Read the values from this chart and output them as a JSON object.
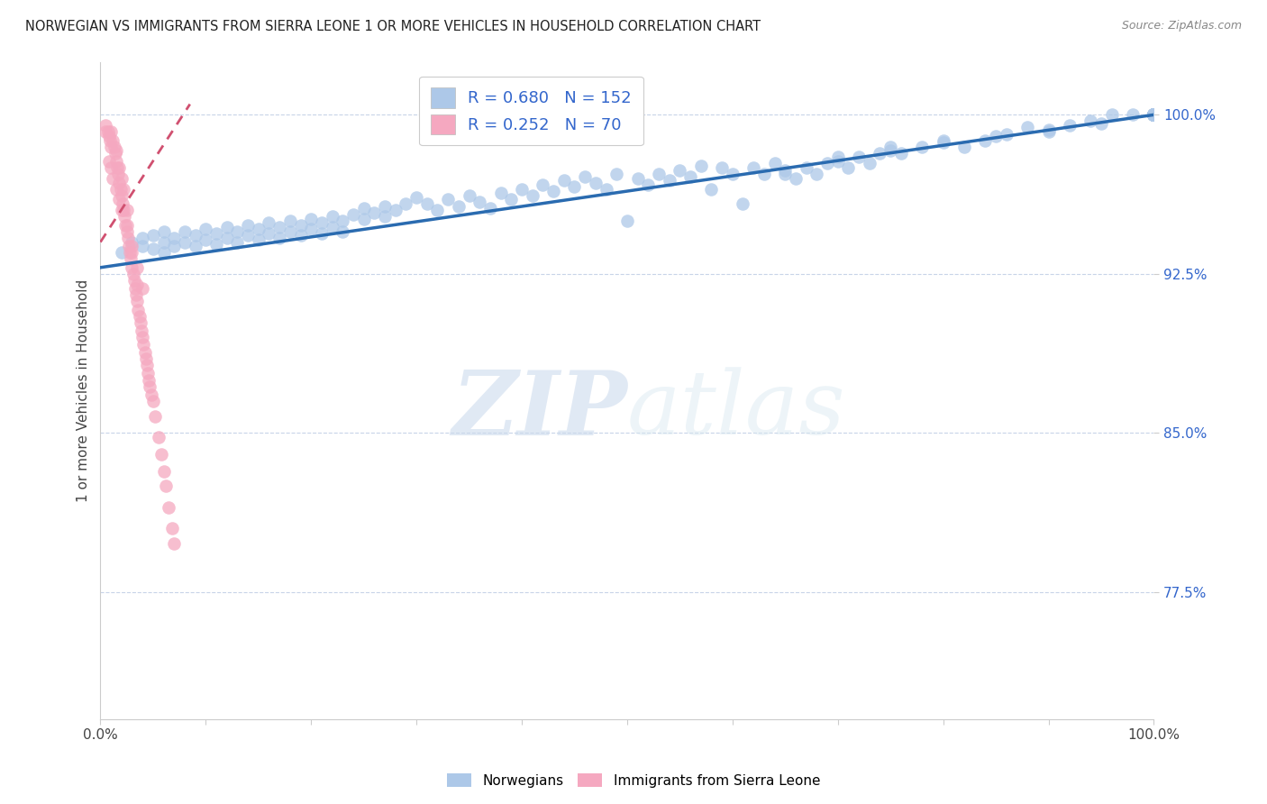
{
  "title": "NORWEGIAN VS IMMIGRANTS FROM SIERRA LEONE 1 OR MORE VEHICLES IN HOUSEHOLD CORRELATION CHART",
  "source": "Source: ZipAtlas.com",
  "ylabel": "1 or more Vehicles in Household",
  "xlim": [
    0.0,
    1.0
  ],
  "ylim": [
    0.715,
    1.025
  ],
  "yticks": [
    0.775,
    0.85,
    0.925,
    1.0
  ],
  "ytick_labels": [
    "77.5%",
    "85.0%",
    "92.5%",
    "100.0%"
  ],
  "watermark_zip": "ZIP",
  "watermark_atlas": "atlas",
  "legend_blue_r": "R = 0.680",
  "legend_blue_n": "N = 152",
  "legend_pink_r": "R = 0.252",
  "legend_pink_n": "N = 70",
  "blue_color": "#adc8e8",
  "blue_line_color": "#2a6bb0",
  "pink_color": "#f5a8c0",
  "pink_line_color": "#d05070",
  "background_color": "#ffffff",
  "grid_color": "#c8d4e8",
  "title_color": "#222222",
  "axis_label_color": "#444444",
  "tick_color_right": "#3366cc",
  "tick_color_bottom": "#444444",
  "blue_scatter": {
    "x": [
      0.02,
      0.03,
      0.04,
      0.04,
      0.05,
      0.05,
      0.06,
      0.06,
      0.06,
      0.07,
      0.07,
      0.08,
      0.08,
      0.09,
      0.09,
      0.1,
      0.1,
      0.11,
      0.11,
      0.12,
      0.12,
      0.13,
      0.13,
      0.14,
      0.14,
      0.15,
      0.15,
      0.16,
      0.16,
      0.17,
      0.17,
      0.18,
      0.18,
      0.19,
      0.19,
      0.2,
      0.2,
      0.21,
      0.21,
      0.22,
      0.22,
      0.23,
      0.23,
      0.24,
      0.25,
      0.25,
      0.26,
      0.27,
      0.27,
      0.28,
      0.29,
      0.3,
      0.31,
      0.32,
      0.33,
      0.34,
      0.35,
      0.36,
      0.37,
      0.38,
      0.39,
      0.4,
      0.41,
      0.42,
      0.43,
      0.44,
      0.45,
      0.46,
      0.47,
      0.48,
      0.49,
      0.5,
      0.51,
      0.52,
      0.53,
      0.54,
      0.55,
      0.56,
      0.57,
      0.58,
      0.59,
      0.6,
      0.61,
      0.62,
      0.63,
      0.64,
      0.65,
      0.66,
      0.67,
      0.68,
      0.69,
      0.7,
      0.71,
      0.72,
      0.73,
      0.74,
      0.75,
      0.76,
      0.78,
      0.8,
      0.82,
      0.84,
      0.86,
      0.88,
      0.9,
      0.92,
      0.94,
      0.96,
      0.98,
      1.0,
      0.65,
      0.7,
      0.75,
      0.8,
      0.85,
      0.9,
      0.95,
      1.0,
      1.0,
      1.0,
      1.0,
      1.0,
      1.0,
      1.0,
      1.0,
      1.0,
      1.0,
      1.0,
      1.0,
      1.0,
      1.0,
      1.0,
      1.0,
      1.0,
      1.0,
      1.0,
      1.0,
      1.0,
      1.0,
      1.0,
      1.0,
      1.0,
      1.0,
      1.0,
      1.0,
      1.0,
      1.0,
      1.0,
      1.0,
      1.0,
      1.0,
      1.0
    ],
    "y": [
      0.935,
      0.94,
      0.942,
      0.938,
      0.943,
      0.937,
      0.945,
      0.94,
      0.935,
      0.942,
      0.938,
      0.945,
      0.94,
      0.943,
      0.938,
      0.946,
      0.941,
      0.944,
      0.939,
      0.947,
      0.942,
      0.945,
      0.94,
      0.948,
      0.943,
      0.946,
      0.941,
      0.949,
      0.944,
      0.947,
      0.942,
      0.95,
      0.945,
      0.948,
      0.943,
      0.951,
      0.946,
      0.949,
      0.944,
      0.952,
      0.947,
      0.95,
      0.945,
      0.953,
      0.956,
      0.951,
      0.954,
      0.957,
      0.952,
      0.955,
      0.958,
      0.961,
      0.958,
      0.955,
      0.96,
      0.957,
      0.962,
      0.959,
      0.956,
      0.963,
      0.96,
      0.965,
      0.962,
      0.967,
      0.964,
      0.969,
      0.966,
      0.971,
      0.968,
      0.965,
      0.972,
      0.95,
      0.97,
      0.967,
      0.972,
      0.969,
      0.974,
      0.971,
      0.976,
      0.965,
      0.975,
      0.972,
      0.958,
      0.975,
      0.972,
      0.977,
      0.974,
      0.97,
      0.975,
      0.972,
      0.977,
      0.98,
      0.975,
      0.98,
      0.977,
      0.982,
      0.985,
      0.982,
      0.985,
      0.988,
      0.985,
      0.988,
      0.991,
      0.994,
      0.992,
      0.995,
      0.997,
      1.0,
      1.0,
      1.0,
      0.972,
      0.978,
      0.983,
      0.987,
      0.99,
      0.993,
      0.996,
      1.0,
      1.0,
      1.0,
      1.0,
      1.0,
      1.0,
      1.0,
      1.0,
      1.0,
      1.0,
      1.0,
      1.0,
      1.0,
      1.0,
      1.0,
      1.0,
      1.0,
      1.0,
      1.0,
      1.0,
      1.0,
      1.0,
      1.0,
      1.0,
      1.0,
      1.0,
      1.0,
      1.0,
      1.0,
      1.0,
      1.0,
      1.0,
      1.0,
      1.0,
      1.0
    ]
  },
  "pink_scatter": {
    "x": [
      0.005,
      0.007,
      0.008,
      0.009,
      0.01,
      0.01,
      0.012,
      0.013,
      0.014,
      0.015,
      0.015,
      0.016,
      0.017,
      0.018,
      0.018,
      0.019,
      0.02,
      0.02,
      0.021,
      0.022,
      0.022,
      0.023,
      0.024,
      0.025,
      0.025,
      0.026,
      0.027,
      0.028,
      0.029,
      0.03,
      0.03,
      0.031,
      0.032,
      0.033,
      0.034,
      0.035,
      0.035,
      0.036,
      0.037,
      0.038,
      0.039,
      0.04,
      0.041,
      0.042,
      0.043,
      0.044,
      0.045,
      0.046,
      0.047,
      0.048,
      0.05,
      0.052,
      0.055,
      0.058,
      0.06,
      0.062,
      0.065,
      0.068,
      0.07,
      0.005,
      0.008,
      0.01,
      0.012,
      0.015,
      0.018,
      0.02,
      0.025,
      0.03,
      0.035,
      0.04
    ],
    "y": [
      0.995,
      0.992,
      0.99,
      0.988,
      0.985,
      0.992,
      0.988,
      0.985,
      0.982,
      0.978,
      0.983,
      0.975,
      0.972,
      0.968,
      0.975,
      0.965,
      0.962,
      0.97,
      0.958,
      0.955,
      0.965,
      0.952,
      0.948,
      0.945,
      0.955,
      0.942,
      0.938,
      0.935,
      0.932,
      0.928,
      0.935,
      0.925,
      0.922,
      0.918,
      0.915,
      0.912,
      0.92,
      0.908,
      0.905,
      0.902,
      0.898,
      0.895,
      0.892,
      0.888,
      0.885,
      0.882,
      0.878,
      0.875,
      0.872,
      0.868,
      0.865,
      0.858,
      0.848,
      0.84,
      0.832,
      0.825,
      0.815,
      0.805,
      0.798,
      0.992,
      0.978,
      0.975,
      0.97,
      0.965,
      0.96,
      0.955,
      0.948,
      0.938,
      0.928,
      0.918
    ]
  },
  "blue_line_x": [
    0.0,
    1.0
  ],
  "blue_line_y": [
    0.928,
    1.0
  ],
  "pink_line_x": [
    0.0,
    0.085
  ],
  "pink_line_y": [
    0.94,
    1.005
  ],
  "pink_line_dash": [
    4,
    3
  ]
}
